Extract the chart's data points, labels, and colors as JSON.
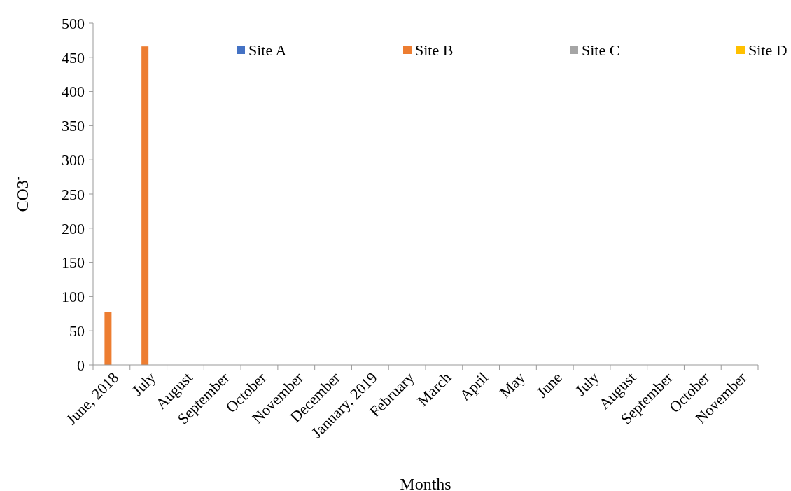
{
  "chart_data": {
    "type": "bar",
    "xlabel": "Months",
    "ylabel": "CO3$^{-}$",
    "categories": [
      "June, 2018",
      "July",
      "August",
      "September",
      "October",
      "November",
      "December",
      "January, 2019",
      "February",
      "March",
      "April",
      "May",
      "June",
      "July",
      "August",
      "September",
      "October",
      "November"
    ],
    "series": [
      {
        "name": "Site A",
        "color": "#4472c4",
        "values": [
          0,
          0,
          0,
          0,
          0,
          0,
          0,
          0,
          0,
          0,
          0,
          0,
          0,
          0,
          0,
          0,
          0,
          0
        ]
      },
      {
        "name": "Site B",
        "color": "#ed7d31",
        "values": [
          77,
          466,
          0,
          0,
          0,
          0,
          0,
          0,
          0,
          0,
          0,
          0,
          0,
          0,
          0,
          0,
          0,
          0
        ]
      },
      {
        "name": "Site C",
        "color": "#a5a5a5",
        "values": [
          0,
          0,
          0,
          0,
          0,
          0,
          0,
          0,
          0,
          0,
          0,
          0,
          0,
          0,
          0,
          0,
          0,
          0
        ]
      },
      {
        "name": "Site D",
        "color": "#ffc000",
        "values": [
          0,
          0,
          0,
          0,
          0,
          0,
          0,
          0,
          0,
          0,
          0,
          0,
          0,
          0,
          0,
          0,
          0,
          0
        ]
      }
    ],
    "ylim": [
      0,
      500
    ],
    "yticks": [
      0,
      50,
      100,
      150,
      200,
      250,
      300,
      350,
      400,
      450,
      500
    ],
    "grid": false,
    "legend": "top right"
  }
}
